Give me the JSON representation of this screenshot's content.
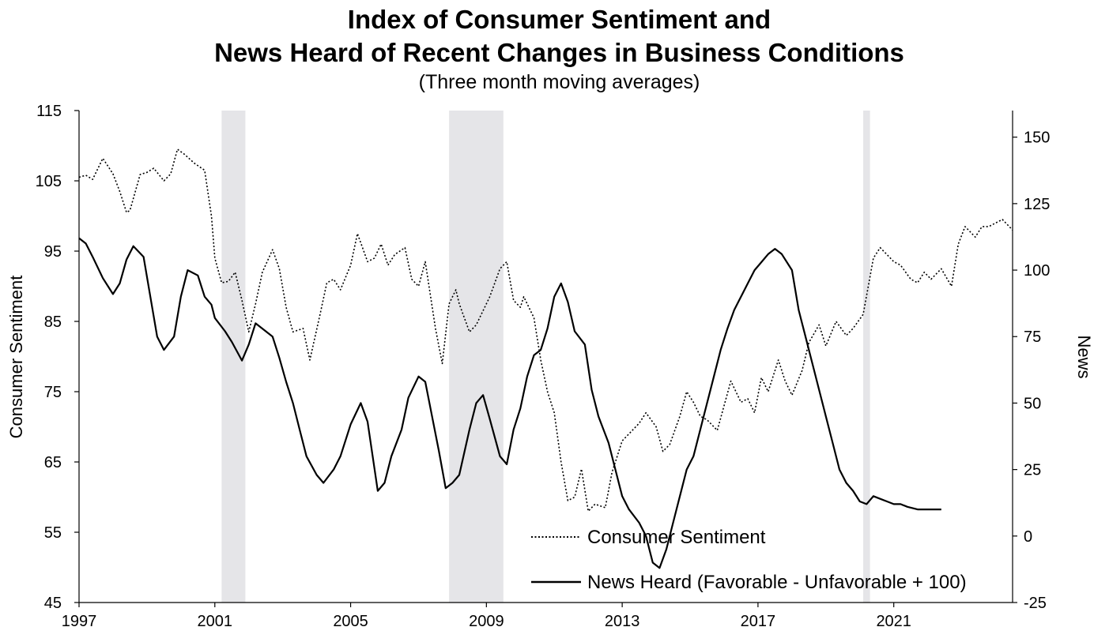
{
  "chart_data": {
    "type": "line",
    "title": "Index of Consumer Sentiment and",
    "title_line2": "News Heard of Recent Changes in Business Conditions",
    "subtitle": "(Three month moving averages)",
    "ylabel_left": "Consumer Sentiment",
    "ylabel_right": "News",
    "xlim": [
      1997,
      2024.5
    ],
    "ylim_left": [
      45,
      115
    ],
    "ylim_right": [
      -25,
      160
    ],
    "x_ticks": [
      "1997",
      "2001",
      "2005",
      "2009",
      "2013",
      "2017",
      "2021"
    ],
    "y_ticks_left": [
      "45",
      "55",
      "65",
      "75",
      "85",
      "95",
      "105",
      "115"
    ],
    "y_ticks_right": [
      "-25",
      "0",
      "25",
      "50",
      "75",
      "100",
      "125",
      "150"
    ],
    "recessions": [
      [
        2001.2,
        2001.9
      ],
      [
        2007.9,
        2009.5
      ],
      [
        2020.1,
        2020.3
      ]
    ],
    "legend_position": "bottom-right",
    "series": [
      {
        "name": "Consumer Sentiment",
        "style": "dotted",
        "axis": "left",
        "points": [
          [
            1997.0,
            105.5
          ],
          [
            1997.2,
            105.8
          ],
          [
            1997.4,
            105.2
          ],
          [
            1997.7,
            108.2
          ],
          [
            1998.0,
            106.0
          ],
          [
            1998.2,
            103.5
          ],
          [
            1998.4,
            100.5
          ],
          [
            1998.5,
            100.8
          ],
          [
            1998.8,
            105.9
          ],
          [
            1999.0,
            106.2
          ],
          [
            1999.2,
            106.8
          ],
          [
            1999.5,
            105.0
          ],
          [
            1999.7,
            106.0
          ],
          [
            1999.9,
            109.5
          ],
          [
            2000.1,
            108.8
          ],
          [
            2000.4,
            107.5
          ],
          [
            2000.7,
            106.5
          ],
          [
            2000.9,
            100.0
          ],
          [
            2001.0,
            94.0
          ],
          [
            2001.2,
            90.5
          ],
          [
            2001.4,
            90.7
          ],
          [
            2001.6,
            92.0
          ],
          [
            2001.8,
            88.0
          ],
          [
            2002.0,
            83.5
          ],
          [
            2002.2,
            87.5
          ],
          [
            2002.4,
            92.0
          ],
          [
            2002.7,
            95.2
          ],
          [
            2002.9,
            92.5
          ],
          [
            2003.1,
            87.0
          ],
          [
            2003.3,
            83.5
          ],
          [
            2003.6,
            84.0
          ],
          [
            2003.8,
            79.5
          ],
          [
            2004.1,
            86.0
          ],
          [
            2004.3,
            90.5
          ],
          [
            2004.5,
            91.0
          ],
          [
            2004.7,
            89.5
          ],
          [
            2005.0,
            93.0
          ],
          [
            2005.2,
            97.5
          ],
          [
            2005.5,
            93.5
          ],
          [
            2005.7,
            94.0
          ],
          [
            2005.9,
            96.0
          ],
          [
            2006.1,
            93.0
          ],
          [
            2006.3,
            94.5
          ],
          [
            2006.6,
            95.5
          ],
          [
            2006.8,
            91.0
          ],
          [
            2007.0,
            90.0
          ],
          [
            2007.2,
            93.5
          ],
          [
            2007.5,
            84.0
          ],
          [
            2007.7,
            79.0
          ],
          [
            2007.9,
            87.5
          ],
          [
            2008.1,
            89.5
          ],
          [
            2008.2,
            87.5
          ],
          [
            2008.5,
            83.5
          ],
          [
            2008.7,
            84.5
          ],
          [
            2009.1,
            88.5
          ],
          [
            2009.4,
            92.5
          ],
          [
            2009.6,
            93.5
          ],
          [
            2009.8,
            88.0
          ],
          [
            2010.0,
            87.0
          ],
          [
            2010.1,
            88.5
          ],
          [
            2010.4,
            85.5
          ],
          [
            2010.6,
            79.5
          ],
          [
            2010.8,
            75.0
          ],
          [
            2011.0,
            72.0
          ],
          [
            2011.2,
            65.0
          ],
          [
            2011.4,
            59.5
          ],
          [
            2011.6,
            60.0
          ],
          [
            2011.8,
            64.0
          ],
          [
            2012.0,
            58.0
          ],
          [
            2012.2,
            59.0
          ],
          [
            2012.5,
            58.5
          ],
          [
            2012.7,
            63.5
          ],
          [
            2013.0,
            68.0
          ],
          [
            2013.2,
            69.0
          ],
          [
            2013.5,
            70.5
          ],
          [
            2013.7,
            72.0
          ],
          [
            2014.0,
            70.0
          ],
          [
            2014.2,
            66.5
          ],
          [
            2014.4,
            67.5
          ],
          [
            2014.7,
            71.5
          ],
          [
            2014.9,
            75.0
          ],
          [
            2015.1,
            73.5
          ],
          [
            2015.3,
            71.5
          ],
          [
            2015.5,
            71.0
          ],
          [
            2015.8,
            69.5
          ],
          [
            2016.0,
            73.0
          ],
          [
            2016.2,
            76.5
          ],
          [
            2016.5,
            73.5
          ],
          [
            2016.7,
            74.0
          ],
          [
            2016.9,
            72.0
          ],
          [
            2017.1,
            77.0
          ],
          [
            2017.3,
            75.0
          ],
          [
            2017.6,
            79.5
          ],
          [
            2017.8,
            76.5
          ],
          [
            2018.0,
            74.5
          ],
          [
            2018.3,
            78.0
          ],
          [
            2018.5,
            82.0
          ],
          [
            2018.8,
            84.5
          ],
          [
            2019.0,
            81.5
          ],
          [
            2019.3,
            85.0
          ],
          [
            2019.6,
            83.0
          ],
          [
            2019.8,
            84.0
          ],
          [
            2020.1,
            86.0
          ],
          [
            2020.4,
            94.0
          ],
          [
            2020.6,
            95.5
          ],
          [
            2020.8,
            94.5
          ],
          [
            2021.0,
            93.5
          ],
          [
            2021.2,
            93.0
          ],
          [
            2021.5,
            91.0
          ],
          [
            2021.7,
            90.5
          ],
          [
            2021.9,
            92.0
          ],
          [
            2022.1,
            91.0
          ],
          [
            2022.4,
            92.5
          ],
          [
            2022.7,
            90.0
          ],
          [
            2022.9,
            96.0
          ],
          [
            2023.1,
            98.5
          ],
          [
            2023.4,
            97.0
          ],
          [
            2023.6,
            98.5
          ],
          [
            2023.8,
            98.5
          ],
          [
            2024.0,
            99.0
          ],
          [
            2024.2,
            99.5
          ],
          [
            2024.5,
            98.0
          ]
        ]
      },
      {
        "name": "News Heard (Favorable - Unfavorable + 100)",
        "style": "solid",
        "axis": "right",
        "points": [
          [
            1997.0,
            112
          ],
          [
            1997.2,
            110
          ],
          [
            1997.4,
            105
          ],
          [
            1997.7,
            97
          ],
          [
            1998.0,
            91
          ],
          [
            1998.2,
            95
          ],
          [
            1998.4,
            104
          ],
          [
            1998.6,
            109
          ],
          [
            1998.9,
            105
          ],
          [
            1999.1,
            90
          ],
          [
            1999.3,
            75
          ],
          [
            1999.5,
            70
          ],
          [
            1999.8,
            75
          ],
          [
            2000.0,
            90
          ],
          [
            2000.2,
            100
          ],
          [
            2000.5,
            98
          ],
          [
            2000.7,
            90
          ],
          [
            2000.9,
            87
          ],
          [
            2001.0,
            82
          ],
          [
            2001.3,
            77
          ],
          [
            2001.5,
            73
          ],
          [
            2001.8,
            66
          ],
          [
            2002.0,
            72
          ],
          [
            2002.2,
            80
          ],
          [
            2002.4,
            78
          ],
          [
            2002.7,
            75
          ],
          [
            2002.9,
            67
          ],
          [
            2003.1,
            58
          ],
          [
            2003.3,
            50
          ],
          [
            2003.5,
            40
          ],
          [
            2003.7,
            30
          ],
          [
            2004.0,
            23
          ],
          [
            2004.2,
            20
          ],
          [
            2004.5,
            25
          ],
          [
            2004.7,
            30
          ],
          [
            2005.0,
            42
          ],
          [
            2005.3,
            50
          ],
          [
            2005.5,
            43
          ],
          [
            2005.8,
            17
          ],
          [
            2006.0,
            20
          ],
          [
            2006.2,
            30
          ],
          [
            2006.5,
            40
          ],
          [
            2006.7,
            52
          ],
          [
            2007.0,
            60
          ],
          [
            2007.2,
            58
          ],
          [
            2007.4,
            45
          ],
          [
            2007.6,
            32
          ],
          [
            2007.8,
            18
          ],
          [
            2008.0,
            20
          ],
          [
            2008.2,
            23
          ],
          [
            2008.5,
            40
          ],
          [
            2008.7,
            50
          ],
          [
            2008.9,
            53
          ],
          [
            2009.1,
            44
          ],
          [
            2009.4,
            30
          ],
          [
            2009.6,
            27
          ],
          [
            2009.8,
            40
          ],
          [
            2010.0,
            48
          ],
          [
            2010.2,
            60
          ],
          [
            2010.4,
            68
          ],
          [
            2010.6,
            70
          ],
          [
            2010.8,
            78
          ],
          [
            2011.0,
            90
          ],
          [
            2011.2,
            95
          ],
          [
            2011.4,
            88
          ],
          [
            2011.6,
            77
          ],
          [
            2011.9,
            72
          ],
          [
            2012.1,
            55
          ],
          [
            2012.3,
            45
          ],
          [
            2012.6,
            35
          ],
          [
            2012.8,
            25
          ],
          [
            2013.0,
            15
          ],
          [
            2013.2,
            10
          ],
          [
            2013.5,
            5
          ],
          [
            2013.7,
            0
          ],
          [
            2013.9,
            -10
          ],
          [
            2014.1,
            -12
          ],
          [
            2014.3,
            -5
          ],
          [
            2014.5,
            5
          ],
          [
            2014.7,
            15
          ],
          [
            2014.9,
            25
          ],
          [
            2015.1,
            30
          ],
          [
            2015.3,
            40
          ],
          [
            2015.5,
            50
          ],
          [
            2015.7,
            60
          ],
          [
            2015.9,
            70
          ],
          [
            2016.1,
            78
          ],
          [
            2016.3,
            85
          ],
          [
            2016.5,
            90
          ],
          [
            2016.7,
            95
          ],
          [
            2016.9,
            100
          ],
          [
            2017.1,
            103
          ],
          [
            2017.3,
            106
          ],
          [
            2017.5,
            108
          ],
          [
            2017.7,
            106
          ],
          [
            2018.0,
            100
          ],
          [
            2018.2,
            85
          ],
          [
            2018.4,
            75
          ],
          [
            2018.6,
            65
          ],
          [
            2018.8,
            55
          ],
          [
            2019.0,
            45
          ],
          [
            2019.2,
            35
          ],
          [
            2019.4,
            25
          ],
          [
            2019.6,
            20
          ],
          [
            2019.8,
            17
          ],
          [
            2020.0,
            13
          ],
          [
            2020.2,
            12
          ],
          [
            2020.4,
            15
          ],
          [
            2020.6,
            14
          ],
          [
            2020.8,
            13
          ],
          [
            2021.0,
            12
          ],
          [
            2021.2,
            12
          ],
          [
            2021.4,
            11
          ],
          [
            2021.7,
            10
          ],
          [
            2022.1,
            10
          ],
          [
            2022.4,
            10
          ]
        ]
      }
    ]
  },
  "legend": {
    "consumer_sentiment": "Consumer Sentiment",
    "news_heard": "News Heard (Favorable - Unfavorable + 100)"
  }
}
